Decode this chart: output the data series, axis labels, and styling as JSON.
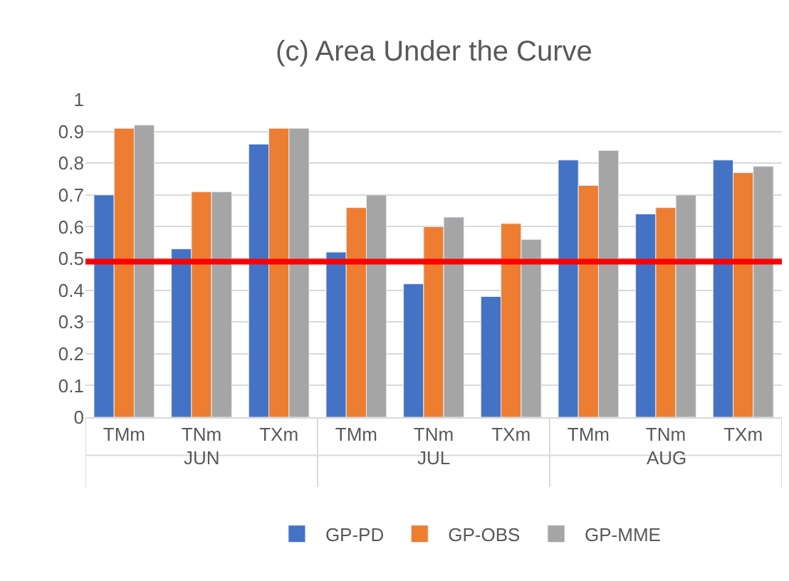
{
  "chart_data": {
    "type": "bar",
    "title": "(c) Area Under the Curve",
    "categories": [
      "TMm",
      "TNm",
      "TXm",
      "TMm",
      "TNm",
      "TXm",
      "TMm",
      "TNm",
      "TXm"
    ],
    "series": [
      {
        "name": "GP-PD",
        "color": "#4472c4",
        "values": [
          0.7,
          0.53,
          0.86,
          0.52,
          0.42,
          0.38,
          0.81,
          0.64,
          0.81
        ]
      },
      {
        "name": "GP-OBS",
        "color": "#ed7d31",
        "values": [
          0.91,
          0.71,
          0.91,
          0.66,
          0.6,
          0.61,
          0.73,
          0.66,
          0.77
        ]
      },
      {
        "name": "GP-MME",
        "color": "#a5a5a5",
        "values": [
          0.92,
          0.71,
          0.91,
          0.7,
          0.63,
          0.56,
          0.84,
          0.7,
          0.79
        ]
      }
    ],
    "annotations": [
      "JUN",
      "JUL",
      "AUG"
    ],
    "ylim": [
      0,
      1
    ],
    "yticks": [
      0,
      0.1,
      0.2,
      0.3,
      0.4,
      0.5,
      0.6,
      0.7,
      0.8,
      0.9,
      1
    ],
    "ref_lines": [
      {
        "axis": "y",
        "value": 0.49,
        "color": "#ff0000"
      }
    ],
    "grid": "y",
    "legend": "bottom"
  }
}
